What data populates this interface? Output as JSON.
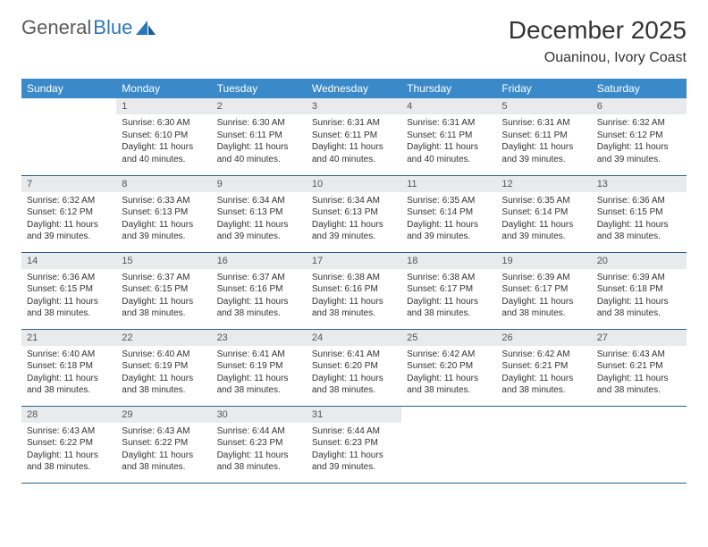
{
  "brand": {
    "part1": "General",
    "part2": "Blue"
  },
  "title": "December 2025",
  "location": "Ouaninou, Ivory Coast",
  "colors": {
    "header_bg": "#3a8ac9",
    "header_text": "#ffffff",
    "daynum_bg": "#e9eaeb",
    "rule": "#2f5f8a",
    "brand_gray": "#5a5a5a",
    "brand_blue": "#2f77bb"
  },
  "weekdays": [
    "Sunday",
    "Monday",
    "Tuesday",
    "Wednesday",
    "Thursday",
    "Friday",
    "Saturday"
  ],
  "start_offset": 1,
  "days": [
    {
      "n": 1,
      "sunrise": "6:30 AM",
      "sunset": "6:10 PM",
      "daylight": "11 hours and 40 minutes."
    },
    {
      "n": 2,
      "sunrise": "6:30 AM",
      "sunset": "6:11 PM",
      "daylight": "11 hours and 40 minutes."
    },
    {
      "n": 3,
      "sunrise": "6:31 AM",
      "sunset": "6:11 PM",
      "daylight": "11 hours and 40 minutes."
    },
    {
      "n": 4,
      "sunrise": "6:31 AM",
      "sunset": "6:11 PM",
      "daylight": "11 hours and 40 minutes."
    },
    {
      "n": 5,
      "sunrise": "6:31 AM",
      "sunset": "6:11 PM",
      "daylight": "11 hours and 39 minutes."
    },
    {
      "n": 6,
      "sunrise": "6:32 AM",
      "sunset": "6:12 PM",
      "daylight": "11 hours and 39 minutes."
    },
    {
      "n": 7,
      "sunrise": "6:32 AM",
      "sunset": "6:12 PM",
      "daylight": "11 hours and 39 minutes."
    },
    {
      "n": 8,
      "sunrise": "6:33 AM",
      "sunset": "6:13 PM",
      "daylight": "11 hours and 39 minutes."
    },
    {
      "n": 9,
      "sunrise": "6:34 AM",
      "sunset": "6:13 PM",
      "daylight": "11 hours and 39 minutes."
    },
    {
      "n": 10,
      "sunrise": "6:34 AM",
      "sunset": "6:13 PM",
      "daylight": "11 hours and 39 minutes."
    },
    {
      "n": 11,
      "sunrise": "6:35 AM",
      "sunset": "6:14 PM",
      "daylight": "11 hours and 39 minutes."
    },
    {
      "n": 12,
      "sunrise": "6:35 AM",
      "sunset": "6:14 PM",
      "daylight": "11 hours and 39 minutes."
    },
    {
      "n": 13,
      "sunrise": "6:36 AM",
      "sunset": "6:15 PM",
      "daylight": "11 hours and 38 minutes."
    },
    {
      "n": 14,
      "sunrise": "6:36 AM",
      "sunset": "6:15 PM",
      "daylight": "11 hours and 38 minutes."
    },
    {
      "n": 15,
      "sunrise": "6:37 AM",
      "sunset": "6:15 PM",
      "daylight": "11 hours and 38 minutes."
    },
    {
      "n": 16,
      "sunrise": "6:37 AM",
      "sunset": "6:16 PM",
      "daylight": "11 hours and 38 minutes."
    },
    {
      "n": 17,
      "sunrise": "6:38 AM",
      "sunset": "6:16 PM",
      "daylight": "11 hours and 38 minutes."
    },
    {
      "n": 18,
      "sunrise": "6:38 AM",
      "sunset": "6:17 PM",
      "daylight": "11 hours and 38 minutes."
    },
    {
      "n": 19,
      "sunrise": "6:39 AM",
      "sunset": "6:17 PM",
      "daylight": "11 hours and 38 minutes."
    },
    {
      "n": 20,
      "sunrise": "6:39 AM",
      "sunset": "6:18 PM",
      "daylight": "11 hours and 38 minutes."
    },
    {
      "n": 21,
      "sunrise": "6:40 AM",
      "sunset": "6:18 PM",
      "daylight": "11 hours and 38 minutes."
    },
    {
      "n": 22,
      "sunrise": "6:40 AM",
      "sunset": "6:19 PM",
      "daylight": "11 hours and 38 minutes."
    },
    {
      "n": 23,
      "sunrise": "6:41 AM",
      "sunset": "6:19 PM",
      "daylight": "11 hours and 38 minutes."
    },
    {
      "n": 24,
      "sunrise": "6:41 AM",
      "sunset": "6:20 PM",
      "daylight": "11 hours and 38 minutes."
    },
    {
      "n": 25,
      "sunrise": "6:42 AM",
      "sunset": "6:20 PM",
      "daylight": "11 hours and 38 minutes."
    },
    {
      "n": 26,
      "sunrise": "6:42 AM",
      "sunset": "6:21 PM",
      "daylight": "11 hours and 38 minutes."
    },
    {
      "n": 27,
      "sunrise": "6:43 AM",
      "sunset": "6:21 PM",
      "daylight": "11 hours and 38 minutes."
    },
    {
      "n": 28,
      "sunrise": "6:43 AM",
      "sunset": "6:22 PM",
      "daylight": "11 hours and 38 minutes."
    },
    {
      "n": 29,
      "sunrise": "6:43 AM",
      "sunset": "6:22 PM",
      "daylight": "11 hours and 38 minutes."
    },
    {
      "n": 30,
      "sunrise": "6:44 AM",
      "sunset": "6:23 PM",
      "daylight": "11 hours and 38 minutes."
    },
    {
      "n": 31,
      "sunrise": "6:44 AM",
      "sunset": "6:23 PM",
      "daylight": "11 hours and 39 minutes."
    }
  ],
  "labels": {
    "sunrise": "Sunrise:",
    "sunset": "Sunset:",
    "daylight": "Daylight:"
  }
}
